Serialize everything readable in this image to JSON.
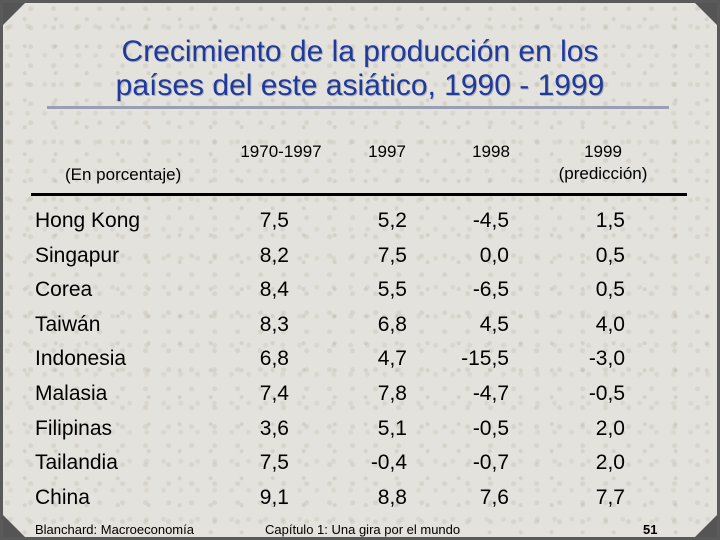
{
  "title": {
    "line1": "Crecimiento de la producción en los",
    "line2": "países del este asiático, 1990 - 1999"
  },
  "table": {
    "unit_note": "(En porcentaje)",
    "columns": [
      {
        "line1": "1970-1997",
        "line2": ""
      },
      {
        "line1": "1997",
        "line2": ""
      },
      {
        "line1": "1998",
        "line2": ""
      },
      {
        "line1": "1999",
        "line2": "(predicción)"
      }
    ],
    "rows": [
      {
        "country": "Hong Kong",
        "values": [
          "7,5",
          "5,2",
          "-4,5",
          "1,5"
        ]
      },
      {
        "country": "Singapur",
        "values": [
          "8,2",
          "7,5",
          "0,0",
          "0,5"
        ]
      },
      {
        "country": "Corea",
        "values": [
          "8,4",
          "5,5",
          "-6,5",
          "0,5"
        ]
      },
      {
        "country": "Taiwán",
        "values": [
          "8,3",
          "6,8",
          "4,5",
          "4,0"
        ]
      },
      {
        "country": "Indonesia",
        "values": [
          "6,8",
          "4,7",
          "-15,5",
          "-3,0"
        ]
      },
      {
        "country": "Malasia",
        "values": [
          "7,4",
          "7,8",
          "-4,7",
          "-0,5"
        ]
      },
      {
        "country": "Filipinas",
        "values": [
          "3,6",
          "5,1",
          "-0,5",
          "2,0"
        ]
      },
      {
        "country": "Tailandia",
        "values": [
          "7,5",
          "-0,4",
          "-0,7",
          "2,0"
        ]
      },
      {
        "country": "China",
        "values": [
          "9,1",
          "8,8",
          "7,6",
          "7,7"
        ]
      }
    ]
  },
  "footer": {
    "left": "Blanchard: Macroeconomía",
    "center": "Capítulo 1: Una gira por el mundo",
    "page": "51"
  },
  "colors": {
    "title": "#1f3a9e",
    "background": "#e4e2dc",
    "frame": "#555555"
  }
}
